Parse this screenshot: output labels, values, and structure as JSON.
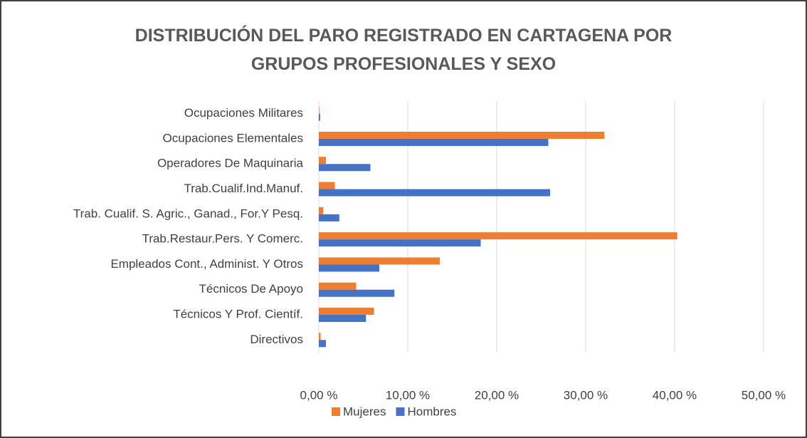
{
  "chart_data": {
    "type": "hbar",
    "title": "DISTRIBUCIÓN DEL PARO REGISTRADO EN CARTAGENA POR GRUPOS PROFESIONALES Y SEXO",
    "categories": [
      "Ocupaciones Militares",
      "Ocupaciones Elementales",
      "Operadores De Maquinaria",
      "Trab.Cualif.Ind.Manuf.",
      "Trab. Cualif. S. Agric., Ganad., For.Y Pesq.",
      "Trab.Restaur.Pers. Y Comerc.",
      "Empleados Cont., Administ. Y Otros",
      "Técnicos De Apoyo",
      "Técnicos Y Prof. Científ.",
      "Directivos"
    ],
    "series": [
      {
        "name": "Mujeres",
        "color": "#ed7d31",
        "values": [
          0.05,
          32.1,
          0.8,
          1.8,
          0.5,
          40.3,
          13.6,
          4.2,
          6.2,
          0.2
        ]
      },
      {
        "name": "Hombres",
        "color": "#4472c4",
        "values": [
          0.15,
          25.8,
          5.8,
          26.0,
          2.3,
          18.2,
          6.8,
          8.5,
          5.3,
          0.8
        ]
      }
    ],
    "xlim": [
      0,
      50
    ],
    "xticks": [
      {
        "value": 0,
        "label": "0,00 %"
      },
      {
        "value": 10,
        "label": "10,00 %"
      },
      {
        "value": 20,
        "label": "20,00 %"
      },
      {
        "value": 30,
        "label": "30,00 %"
      },
      {
        "value": 40,
        "label": "40,00 %"
      },
      {
        "value": 50,
        "label": "50,00 %"
      }
    ],
    "grid": true,
    "legend": "bottom"
  }
}
